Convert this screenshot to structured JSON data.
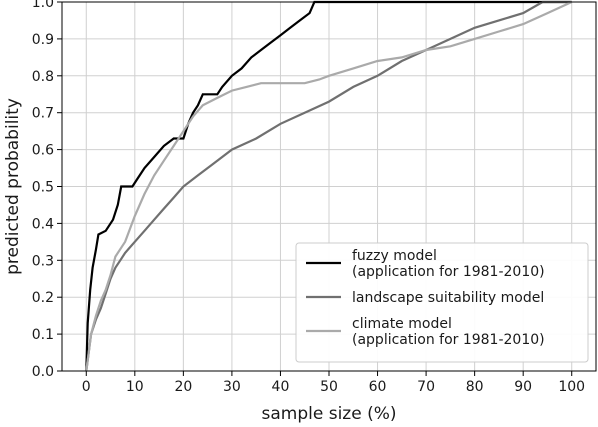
{
  "chart_data": {
    "type": "line",
    "title": "",
    "xlabel": "sample size (%)",
    "ylabel": "predicted probability",
    "xlim": [
      -5,
      105
    ],
    "ylim": [
      0,
      1.0
    ],
    "xticks": [
      "0",
      "10",
      "20",
      "30",
      "40",
      "50",
      "60",
      "70",
      "80",
      "90",
      "100"
    ],
    "yticks": [
      "0.0",
      "0.1",
      "0.2",
      "0.3",
      "0.4",
      "0.5",
      "0.6",
      "0.7",
      "0.8",
      "0.9",
      "1.0"
    ],
    "grid": true,
    "legend_position": "bottom-right",
    "series": [
      {
        "name": "fuzzy model\n(application for 1981-2010)",
        "color": "#000000",
        "points": [
          [
            0,
            0
          ],
          [
            0.3,
            0.13
          ],
          [
            0.8,
            0.22
          ],
          [
            1.3,
            0.28
          ],
          [
            2,
            0.33
          ],
          [
            2.5,
            0.37
          ],
          [
            4,
            0.38
          ],
          [
            5.5,
            0.41
          ],
          [
            6.5,
            0.45
          ],
          [
            7.2,
            0.5
          ],
          [
            9.5,
            0.5
          ],
          [
            10.5,
            0.52
          ],
          [
            12,
            0.55
          ],
          [
            14,
            0.58
          ],
          [
            16,
            0.61
          ],
          [
            18,
            0.63
          ],
          [
            20,
            0.63
          ],
          [
            21,
            0.67
          ],
          [
            22,
            0.7
          ],
          [
            23,
            0.72
          ],
          [
            24,
            0.75
          ],
          [
            27,
            0.75
          ],
          [
            28,
            0.77
          ],
          [
            30,
            0.8
          ],
          [
            32,
            0.82
          ],
          [
            34,
            0.85
          ],
          [
            36,
            0.87
          ],
          [
            38,
            0.89
          ],
          [
            40,
            0.91
          ],
          [
            42,
            0.93
          ],
          [
            44,
            0.95
          ],
          [
            46,
            0.97
          ],
          [
            47,
            1.0
          ],
          [
            93,
            1.0
          ],
          [
            100,
            1.0
          ]
        ]
      },
      {
        "name": "landscape suitability model",
        "color": "#707070",
        "points": [
          [
            0,
            0
          ],
          [
            0.5,
            0.05
          ],
          [
            1,
            0.1
          ],
          [
            2,
            0.14
          ],
          [
            3,
            0.17
          ],
          [
            4,
            0.21
          ],
          [
            5,
            0.25
          ],
          [
            6,
            0.28
          ],
          [
            7,
            0.3
          ],
          [
            8,
            0.32
          ],
          [
            10,
            0.35
          ],
          [
            12,
            0.38
          ],
          [
            14,
            0.41
          ],
          [
            16,
            0.44
          ],
          [
            18,
            0.47
          ],
          [
            20,
            0.5
          ],
          [
            23,
            0.53
          ],
          [
            26,
            0.56
          ],
          [
            30,
            0.6
          ],
          [
            35,
            0.63
          ],
          [
            40,
            0.67
          ],
          [
            45,
            0.7
          ],
          [
            50,
            0.73
          ],
          [
            55,
            0.77
          ],
          [
            60,
            0.8
          ],
          [
            65,
            0.84
          ],
          [
            70,
            0.87
          ],
          [
            75,
            0.9
          ],
          [
            80,
            0.93
          ],
          [
            85,
            0.95
          ],
          [
            90,
            0.97
          ],
          [
            94,
            1.0
          ],
          [
            100,
            1.0
          ]
        ]
      },
      {
        "name": "climate model\n(application for 1981-2010)",
        "color": "#aaaaaa",
        "points": [
          [
            0,
            0
          ],
          [
            0.5,
            0.05
          ],
          [
            1,
            0.1
          ],
          [
            2,
            0.15
          ],
          [
            3,
            0.19
          ],
          [
            4,
            0.22
          ],
          [
            5,
            0.26
          ],
          [
            6,
            0.31
          ],
          [
            8,
            0.35
          ],
          [
            10,
            0.42
          ],
          [
            12,
            0.48
          ],
          [
            14,
            0.53
          ],
          [
            16,
            0.57
          ],
          [
            18,
            0.61
          ],
          [
            20,
            0.65
          ],
          [
            22,
            0.69
          ],
          [
            24,
            0.72
          ],
          [
            27,
            0.74
          ],
          [
            30,
            0.76
          ],
          [
            33,
            0.77
          ],
          [
            36,
            0.78
          ],
          [
            40,
            0.78
          ],
          [
            45,
            0.78
          ],
          [
            48,
            0.79
          ],
          [
            50,
            0.8
          ],
          [
            55,
            0.82
          ],
          [
            60,
            0.84
          ],
          [
            65,
            0.85
          ],
          [
            70,
            0.87
          ],
          [
            75,
            0.88
          ],
          [
            80,
            0.9
          ],
          [
            85,
            0.92
          ],
          [
            90,
            0.94
          ],
          [
            95,
            0.97
          ],
          [
            100,
            1.0
          ]
        ]
      }
    ]
  }
}
